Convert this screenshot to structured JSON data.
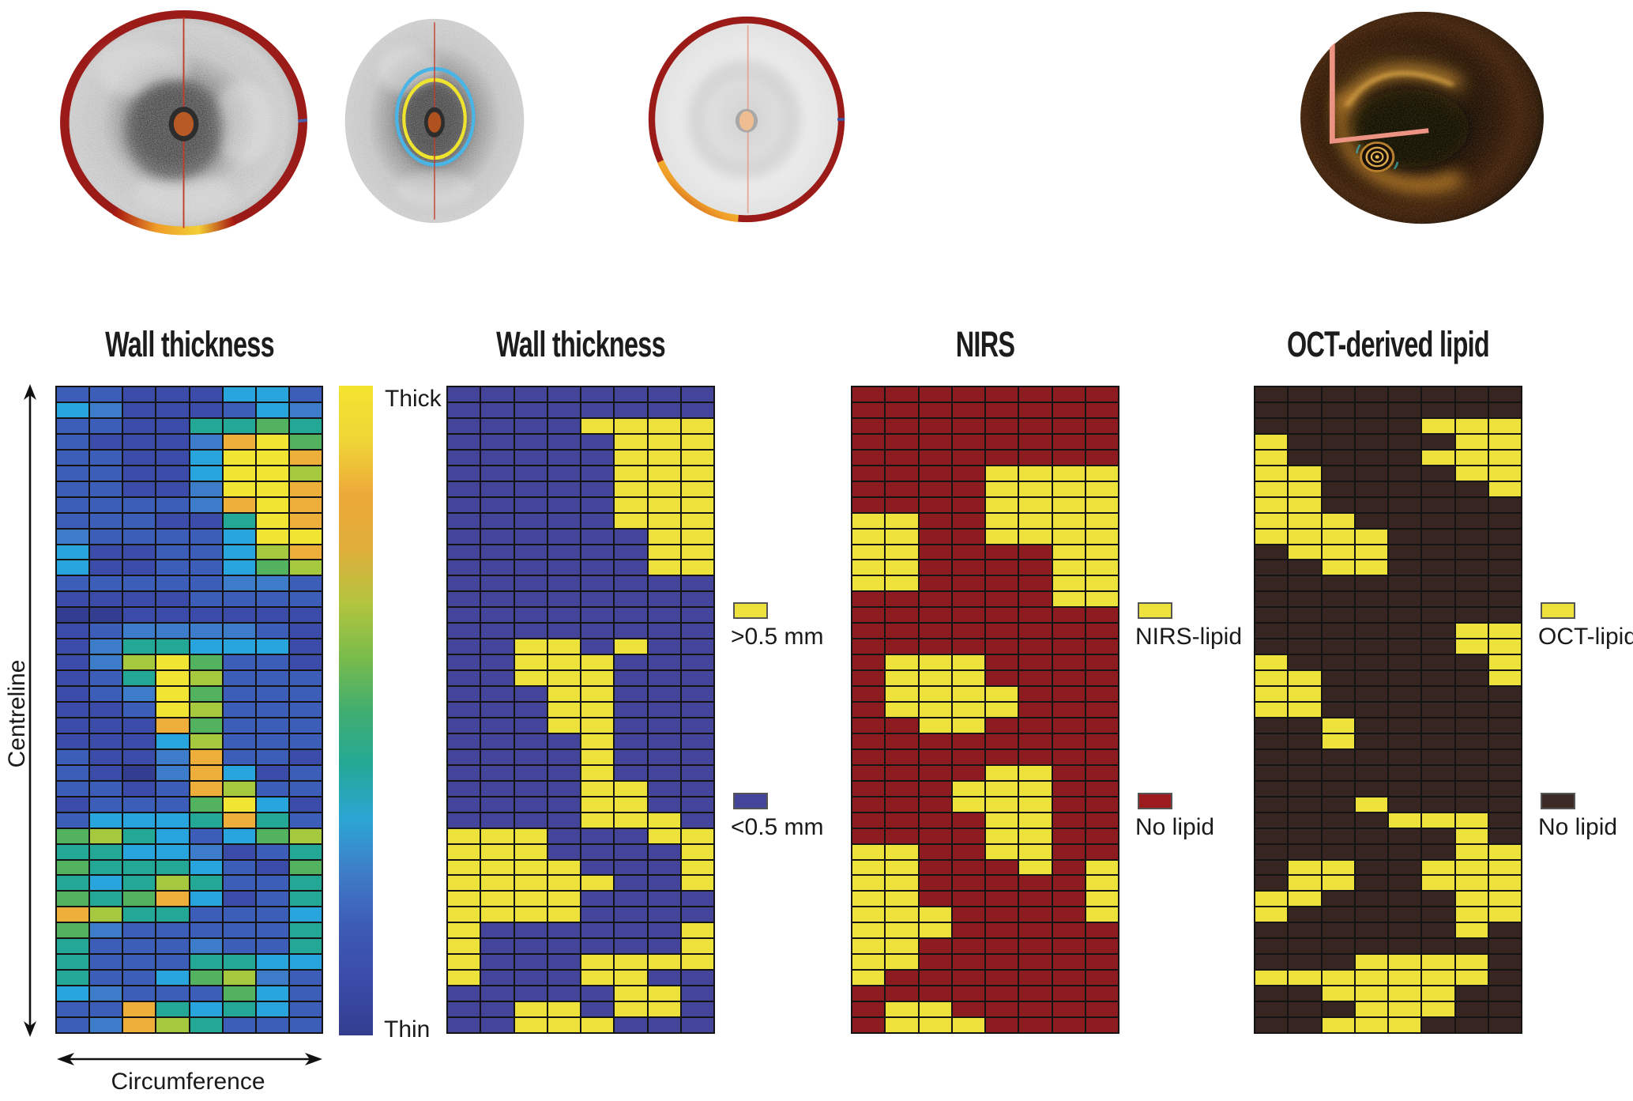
{
  "figure": {
    "background": "#ffffff"
  },
  "panels": [
    {
      "title": "Wall thickness",
      "image": "ivus-with-red-wall-ring"
    },
    {
      "title": "Wall thickness",
      "image": "ivus-with-cyan-yellow-contours"
    },
    {
      "title": "NIRS",
      "image": "pale-ivus-with-red-ring"
    },
    {
      "title": "OCT-derived lipid",
      "image": "oct-amber-cross-section"
    }
  ],
  "axes": {
    "vertical": "Centreline",
    "horizontal": "Circumference"
  },
  "colorbar": {
    "top_label": "Thick",
    "bottom_label": "Thin",
    "stops": [
      "#F4E32F",
      "#EFD636",
      "#EDA93A",
      "#E0AE3B",
      "#B4C43D",
      "#7ABC4B",
      "#41AE70",
      "#23A896",
      "#2BA6D4",
      "#3F7CC8",
      "#3D5BB4",
      "#3A4BA8",
      "#333E90"
    ]
  },
  "legends": [
    {
      "items": [
        {
          "label": ">0.5 mm",
          "color": "#EDE23B"
        },
        {
          "label": "<0.5 mm",
          "color": "#45449B"
        }
      ]
    },
    {
      "items": [
        {
          "label": "NIRS-lipid",
          "color": "#EDE23B"
        },
        {
          "label": "No lipid",
          "color": "#9C1B1F"
        }
      ]
    },
    {
      "items": [
        {
          "label": "OCT-lipid",
          "color": "#EDE23B"
        },
        {
          "label": "No lipid",
          "color": "#3B2A26"
        }
      ]
    }
  ],
  "chart_data": [
    {
      "type": "heatmap",
      "subtype": "continuous",
      "title": "Wall thickness",
      "xlabel": "Circumference",
      "ylabel": "Centreline",
      "columns": 8,
      "rows_count": 41,
      "value_scale": "0 = Thin (dark blue) ... 9 = Thick (yellow)",
      "palette": [
        "#333E90",
        "#3A4BA8",
        "#3D5EB8",
        "#3D7CC8",
        "#29A5DE",
        "#23A896",
        "#52B25F",
        "#A6C83E",
        "#EDAE3A",
        "#F2E433"
      ],
      "rows": [
        "22111442",
        "43111243",
        "22115565",
        "21113896",
        "22114998",
        "22114997",
        "22113998",
        "22223898",
        "22211598",
        "32222499",
        "41122478",
        "41122467",
        "22222332",
        "11112222",
        "00111111",
        "12333321",
        "13554441",
        "13796221",
        "12597222",
        "12396222",
        "11297222",
        "11186222",
        "11147222",
        "21138221",
        "21038412",
        "22128722",
        "12226941",
        "24445852",
        "67542467",
        "55443125",
        "65554216",
        "54575225",
        "65684125",
        "87552224",
        "63222225",
        "52223225",
        "52225544",
        "52246732",
        "43222642",
        "22854542",
        "23875222"
      ]
    },
    {
      "type": "heatmap",
      "subtype": "binary",
      "title": "Wall thickness",
      "legend": {
        "one": ">0.5 mm",
        "zero": "<0.5 mm"
      },
      "colors": {
        "one": "#EDE23B",
        "zero": "#45449B"
      },
      "columns": 8,
      "rows_count": 41,
      "rows": [
        "00000000",
        "00000000",
        "00001111",
        "00000111",
        "00000111",
        "00000111",
        "00000111",
        "00000111",
        "00000111",
        "00000011",
        "00000011",
        "00000011",
        "00000000",
        "00000000",
        "00000000",
        "00000000",
        "00110100",
        "00111000",
        "00111000",
        "00011000",
        "00011000",
        "00011000",
        "00001000",
        "00001000",
        "00001000",
        "00001100",
        "00001100",
        "00001110",
        "11100011",
        "11100001",
        "11110001",
        "11111001",
        "11110000",
        "11110000",
        "10000001",
        "10000001",
        "10001111",
        "10001100",
        "00000110",
        "00110110",
        "00111000"
      ]
    },
    {
      "type": "heatmap",
      "subtype": "binary",
      "title": "NIRS",
      "legend": {
        "one": "NIRS-lipid",
        "zero": "No lipid"
      },
      "colors": {
        "one": "#EDE23B",
        "zero": "#8E1B1F"
      },
      "columns": 8,
      "rows_count": 41,
      "rows": [
        "00000000",
        "00000000",
        "00000000",
        "00000000",
        "00000000",
        "00001111",
        "00001111",
        "00001111",
        "11001111",
        "11001111",
        "11000011",
        "11000011",
        "11000011",
        "00000011",
        "00000000",
        "00000000",
        "00000000",
        "01110000",
        "01110000",
        "01111000",
        "01111000",
        "00110000",
        "00000000",
        "00000000",
        "00001100",
        "00011100",
        "00011100",
        "00001100",
        "00001100",
        "11001100",
        "11000101",
        "11000001",
        "11000001",
        "11100001",
        "11100000",
        "11000000",
        "11000000",
        "10000000",
        "00000000",
        "01100000",
        "01110000"
      ]
    },
    {
      "type": "heatmap",
      "subtype": "binary",
      "title": "OCT-derived lipid",
      "legend": {
        "one": "OCT-lipid",
        "zero": "No lipid"
      },
      "colors": {
        "one": "#EDE23B",
        "zero": "#372522"
      },
      "columns": 8,
      "rows_count": 41,
      "rows": [
        "00000000",
        "00000000",
        "00000111",
        "10000011",
        "10000111",
        "11000011",
        "11000001",
        "11000000",
        "11100000",
        "11110000",
        "01110000",
        "00110000",
        "00000000",
        "00000000",
        "00000000",
        "00000011",
        "00000011",
        "10000001",
        "11000001",
        "11000000",
        "11000000",
        "00100000",
        "00100000",
        "00000000",
        "00000000",
        "00000000",
        "00010000",
        "00001110",
        "00000010",
        "00000011",
        "01100111",
        "01100111",
        "11000011",
        "10000011",
        "00000010",
        "00000000",
        "00011110",
        "11111110",
        "00111100",
        "00011100",
        "00111000"
      ]
    }
  ]
}
